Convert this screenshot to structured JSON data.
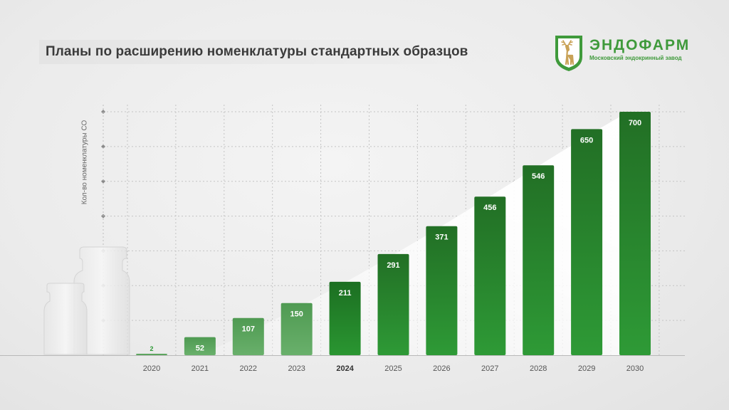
{
  "header": {
    "title": "Планы по расширению номенклатуры стандартных образцов"
  },
  "logo": {
    "name": "ЭНДОФАРМ",
    "subtitle": "Московский эндокринный завод",
    "icon": "deer-shield-icon",
    "color": "#3f9a3b"
  },
  "chart_data": {
    "type": "bar",
    "ylabel": "Кол-во номенклатуры СО",
    "xlabel": "",
    "categories": [
      "2020",
      "2021",
      "2022",
      "2023",
      "2024",
      "2025",
      "2026",
      "2027",
      "2028",
      "2029",
      "2030"
    ],
    "values": [
      2,
      52,
      107,
      150,
      211,
      291,
      371,
      456,
      546,
      650,
      700
    ],
    "highlight_category": "2024",
    "ylim": [
      0,
      700
    ],
    "grid": true,
    "colors": {
      "past": "#5fa862",
      "highlight": "#238a2a",
      "future": "#2e9a36",
      "future_top": "#226f25"
    }
  }
}
